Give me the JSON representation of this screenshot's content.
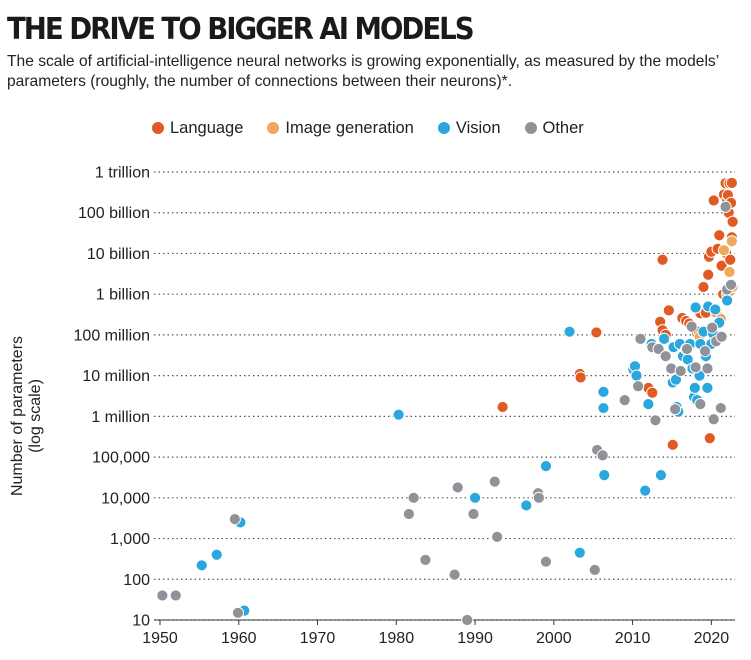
{
  "header": {
    "title": "THE DRIVE TO BIGGER AI MODELS",
    "subtitle": "The scale of artificial-intelligence neural networks is growing exponentially, as measured by the models’ parameters (roughly, the number of connections between their neurons)*."
  },
  "colors": {
    "Language": "#e05a24",
    "Image generation": "#efa95a",
    "Vision": "#2aa7dc",
    "Other": "#8f9399",
    "grid": "#555555",
    "point_outline": "#ffffff"
  },
  "chart_data": {
    "type": "scatter",
    "title": "",
    "xlabel": "",
    "ylabel": "Number of parameters (log scale)",
    "ylabel_lines": [
      "Number of parameters",
      "(log scale)"
    ],
    "x_scale": "linear",
    "y_scale": "log",
    "xlim": [
      1950,
      2023
    ],
    "ylim": [
      10,
      1000000000000
    ],
    "grid": "horizontal dotted",
    "legend_position": "top",
    "x_ticks": [
      1950,
      1960,
      1970,
      1980,
      1990,
      2000,
      2010,
      2020
    ],
    "x_tick_labels": [
      "1950",
      "1960",
      "1970",
      "1980",
      "1990",
      "2000",
      "2010",
      "2020"
    ],
    "y_ticks": [
      10,
      100,
      1000,
      10000,
      100000,
      1000000,
      10000000,
      100000000,
      1000000000,
      10000000000,
      100000000000,
      1000000000000
    ],
    "y_tick_labels": [
      "10",
      "100",
      "1,000",
      "10,000",
      "100,000",
      "1 million",
      "10 million",
      "100 million",
      "1 billion",
      "10 billion",
      "100 billion",
      "1 trillion"
    ],
    "series": [
      {
        "name": "Language",
        "points": [
          [
            2003.3,
            11000000
          ],
          [
            2003.4,
            9000000
          ],
          [
            2005.4,
            115000000
          ],
          [
            1993.5,
            1700000
          ],
          [
            2012,
            5000000
          ],
          [
            2012.5,
            3800000
          ],
          [
            2013.5,
            210000000
          ],
          [
            2013.8,
            130000000
          ],
          [
            2013.8,
            7000000000
          ],
          [
            2014.2,
            100000000
          ],
          [
            2014.6,
            400000000
          ],
          [
            2015.1,
            200000
          ],
          [
            2016.3,
            260000000
          ],
          [
            2016.8,
            220000000
          ],
          [
            2017.2,
            190000000
          ],
          [
            2018.2,
            110000000
          ],
          [
            2018.4,
            120000000
          ],
          [
            2018.6,
            340000000
          ],
          [
            2019.0,
            1500000000
          ],
          [
            2019.3,
            350000000
          ],
          [
            2019.6,
            3000000000
          ],
          [
            2019.7,
            8300000000
          ],
          [
            2019.8,
            290000
          ],
          [
            2020.0,
            11000000000
          ],
          [
            2020.3,
            200000000000
          ],
          [
            2020.6,
            360000000
          ],
          [
            2020.8,
            13000000000
          ],
          [
            2021.0,
            28000000000
          ],
          [
            2021.3,
            5000000000
          ],
          [
            2021.5,
            1000000000
          ],
          [
            2021.6,
            280000000000
          ],
          [
            2021.8,
            530000000000
          ],
          [
            2021.9,
            10000000000
          ],
          [
            2022.0,
            200000000000
          ],
          [
            2022.1,
            270000000000
          ],
          [
            2022.2,
            100000000000
          ],
          [
            2022.3,
            530000000000
          ],
          [
            2022.4,
            7000000000
          ],
          [
            2022.5,
            175000000000
          ],
          [
            2022.7,
            60000000000
          ],
          [
            2022.6,
            540000000000
          ],
          [
            2022.6,
            25000000000
          ]
        ]
      },
      {
        "name": "Image generation",
        "points": [
          [
            2018.5,
            90000000
          ],
          [
            2021.2,
            250000000
          ],
          [
            2021.6,
            12000000000
          ],
          [
            2022.0,
            1000000000
          ],
          [
            2022.3,
            3500000000
          ],
          [
            2022.4,
            1200000000
          ],
          [
            2022.6,
            20000000000
          ],
          [
            2022.7,
            1500000000
          ]
        ]
      },
      {
        "name": "Vision",
        "points": [
          [
            1955.3,
            220
          ],
          [
            1957.2,
            400
          ],
          [
            1960.2,
            2500
          ],
          [
            1960.7,
            17
          ],
          [
            1980.3,
            1100000
          ],
          [
            1990.0,
            10000
          ],
          [
            1996.5,
            6500
          ],
          [
            1999.0,
            60000
          ],
          [
            2002.0,
            120000000
          ],
          [
            2003.3,
            450
          ],
          [
            2006.3,
            4000000
          ],
          [
            2006.3,
            1600000
          ],
          [
            2006.4,
            36000
          ],
          [
            2010.1,
            14000000
          ],
          [
            2010.3,
            17000000
          ],
          [
            2010.5,
            10000000
          ],
          [
            2011.6,
            15000
          ],
          [
            2012.0,
            2000000
          ],
          [
            2012.4,
            60000000
          ],
          [
            2013.0,
            45000000
          ],
          [
            2013.6,
            36000
          ],
          [
            2014.0,
            80000000
          ],
          [
            2015.1,
            6800000
          ],
          [
            2015.2,
            50000000
          ],
          [
            2015.5,
            8000000
          ],
          [
            2015.6,
            1700000
          ],
          [
            2015.8,
            1300000
          ],
          [
            2016.0,
            60000000
          ],
          [
            2016.4,
            30000000
          ],
          [
            2016.8,
            45000000
          ],
          [
            2017.0,
            25000000
          ],
          [
            2017.3,
            60000000
          ],
          [
            2017.6,
            15000000
          ],
          [
            2017.8,
            3000000
          ],
          [
            2017.9,
            5000000
          ],
          [
            2018.0,
            470000000
          ],
          [
            2018.2,
            2500000
          ],
          [
            2018.5,
            10000000
          ],
          [
            2018.6,
            60000000
          ],
          [
            2019.0,
            120000000
          ],
          [
            2019.3,
            30000000
          ],
          [
            2019.5,
            5000000
          ],
          [
            2019.6,
            500000000
          ],
          [
            2020.0,
            60000000
          ],
          [
            2020.2,
            110000000
          ],
          [
            2020.5,
            420000000
          ],
          [
            2021.0,
            200000000
          ],
          [
            2022.0,
            700000000
          ]
        ]
      },
      {
        "name": "Other",
        "points": [
          [
            1950.3,
            40
          ],
          [
            1952.0,
            40
          ],
          [
            1959.5,
            3000
          ],
          [
            1959.9,
            15
          ],
          [
            1981.6,
            4000
          ],
          [
            1982.2,
            10000
          ],
          [
            1983.7,
            300
          ],
          [
            1987.4,
            130
          ],
          [
            1987.8,
            18000
          ],
          [
            1989.0,
            10
          ],
          [
            1989.8,
            4000
          ],
          [
            1992.5,
            25000
          ],
          [
            1992.8,
            1100
          ],
          [
            1998.0,
            13000
          ],
          [
            1998.1,
            10000
          ],
          [
            1999.0,
            270
          ],
          [
            2005.2,
            170
          ],
          [
            2005.5,
            150000
          ],
          [
            2006.2,
            110000
          ],
          [
            2009.0,
            2500000
          ],
          [
            2010.7,
            5500000
          ],
          [
            2011.0,
            80000000
          ],
          [
            2012.5,
            50000000
          ],
          [
            2012.9,
            800000
          ],
          [
            2013.3,
            45000000
          ],
          [
            2014.2,
            30000000
          ],
          [
            2014.9,
            15000000
          ],
          [
            2015.4,
            1500000
          ],
          [
            2016.1,
            13000000
          ],
          [
            2016.9,
            45000000
          ],
          [
            2017.5,
            160000000
          ],
          [
            2018.0,
            16000000
          ],
          [
            2018.6,
            2000000
          ],
          [
            2019.2,
            40000000
          ],
          [
            2019.5,
            15000000
          ],
          [
            2020.1,
            150000000
          ],
          [
            2020.3,
            850000
          ],
          [
            2020.6,
            70000000
          ],
          [
            2021.2,
            1600000
          ],
          [
            2021.3,
            90000000
          ],
          [
            2021.8,
            140000000000
          ],
          [
            2022.0,
            1300000000
          ],
          [
            2022.5,
            1700000000
          ]
        ]
      }
    ]
  }
}
